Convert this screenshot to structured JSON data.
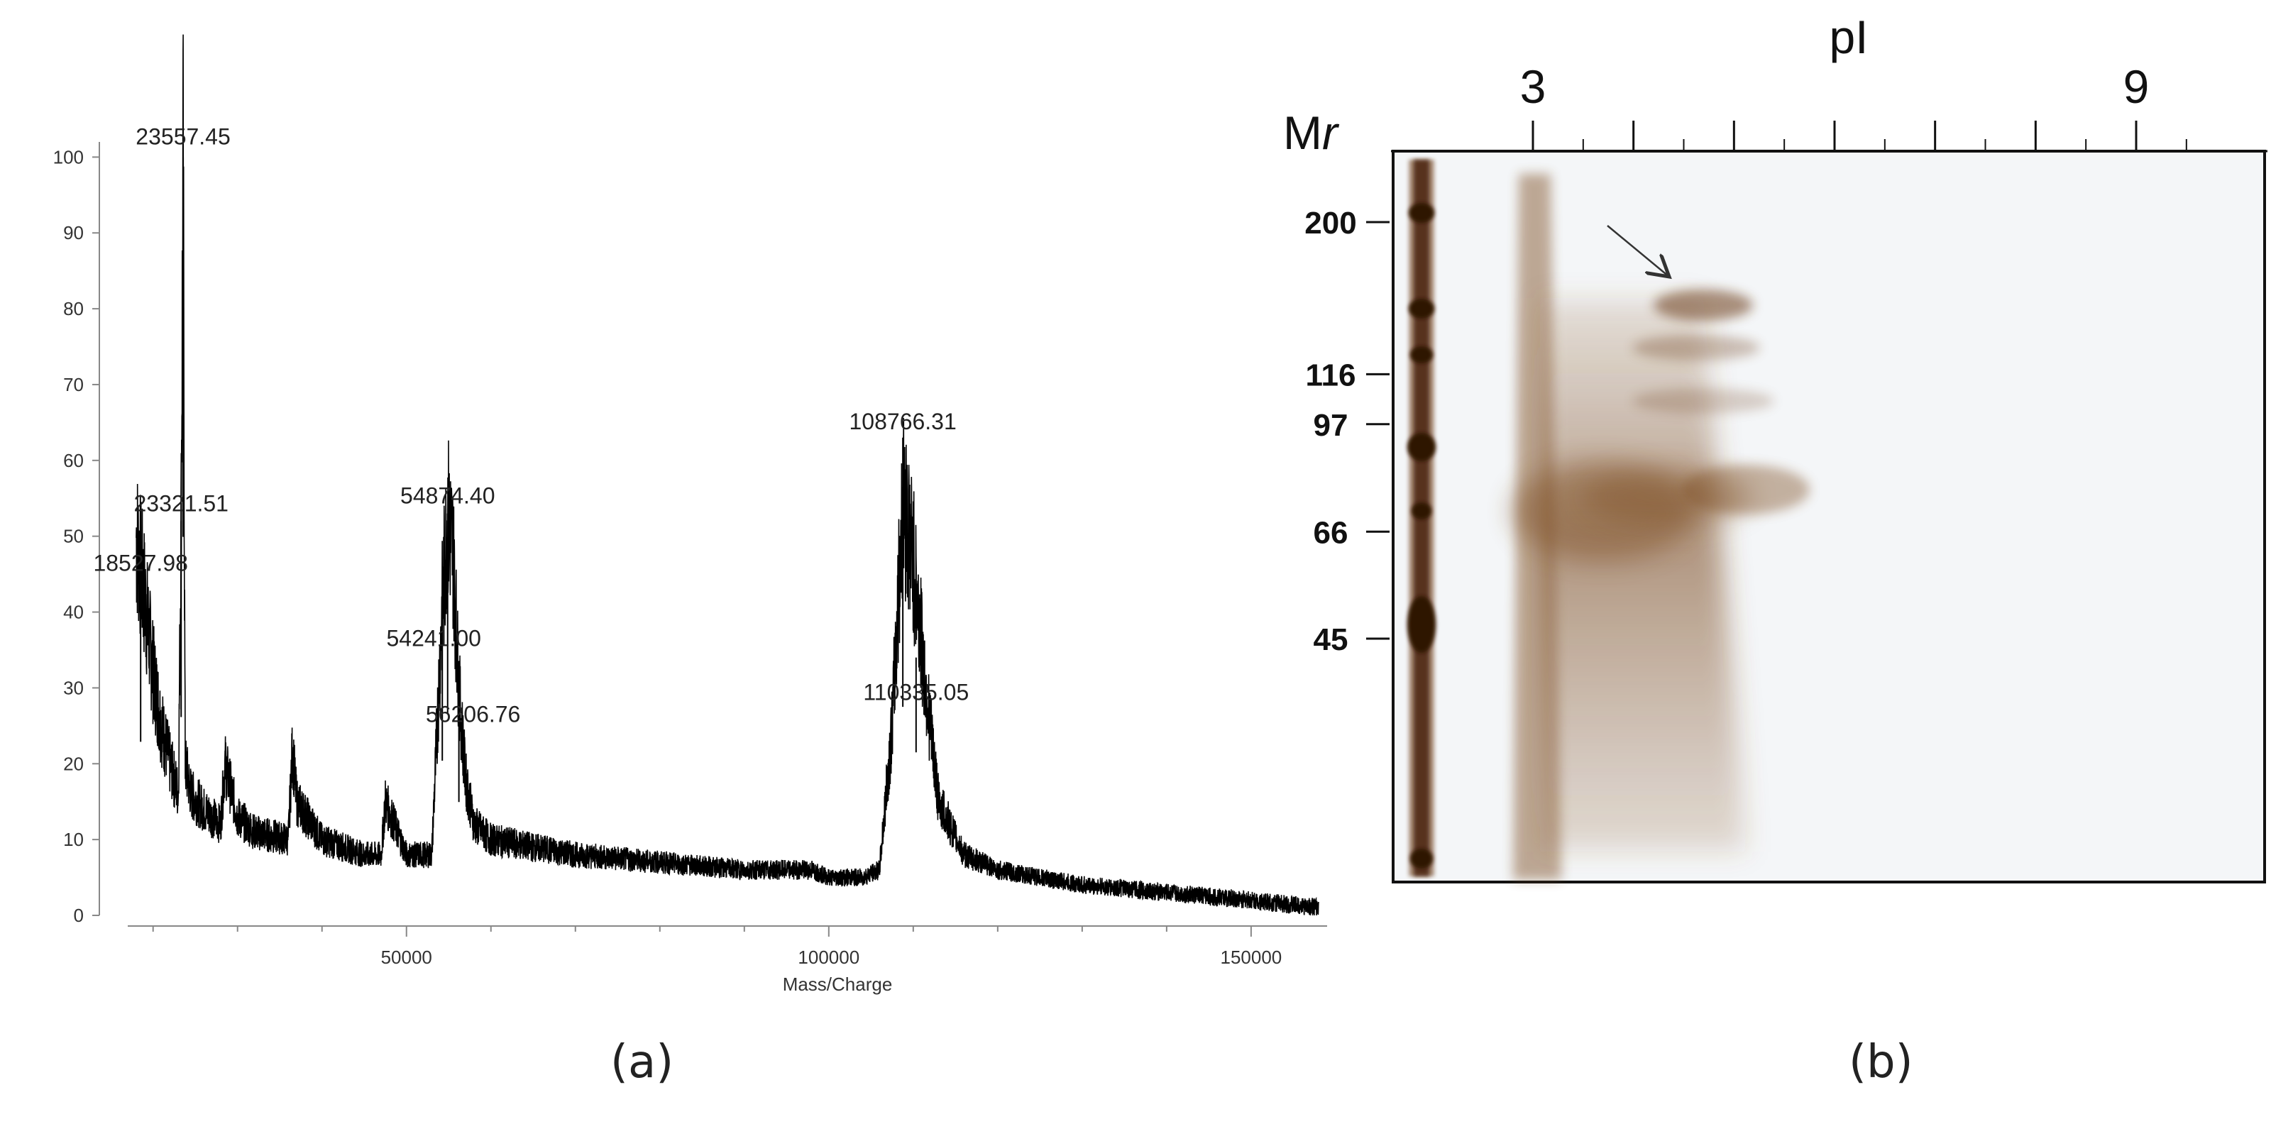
{
  "panels": {
    "a_label": "(a)",
    "b_label": "(b)"
  },
  "chart_data": [
    {
      "type": "line",
      "panel": "(a)",
      "title": "",
      "xlabel": "Mass/Charge",
      "ylabel": "",
      "xlim": [
        17000,
        159000
      ],
      "ylim": [
        0,
        102
      ],
      "x_ticks": [
        50000,
        100000,
        150000
      ],
      "x_tick_labels": [
        "50000",
        "100000",
        "150000"
      ],
      "y_ticks": [
        0,
        10,
        20,
        30,
        40,
        50,
        60,
        70,
        80,
        90,
        100
      ],
      "y_tick_labels": [
        "0",
        "10",
        "20",
        "30",
        "40",
        "50",
        "60",
        "70",
        "80",
        "90",
        "100"
      ],
      "series": [
        {
          "x": [
            18000,
            19000,
            20000,
            21000,
            22000,
            23000,
            23320,
            23557,
            23800,
            24500,
            26000,
            28000,
            28500,
            30000,
            32000,
            36000,
            36500,
            37000,
            40000,
            45000,
            47000,
            47500,
            50000,
            53000,
            54200,
            54874,
            55500,
            56200,
            57000,
            58000,
            60000,
            70000,
            80000,
            90000,
            98000,
            100000,
            104000,
            106000,
            107500,
            108766,
            110000,
            110335,
            111500,
            113000,
            116000,
            120000,
            125000,
            130000,
            140000,
            150000,
            158000
          ],
          "y": [
            50,
            42,
            32,
            25,
            20,
            16,
            52,
            100,
            20,
            16,
            14,
            12,
            20,
            13,
            11,
            10,
            22,
            15,
            10,
            8,
            8,
            15,
            8,
            8,
            40,
            53,
            48,
            30,
            18,
            12,
            10,
            8,
            7,
            6,
            6,
            5,
            5,
            6,
            25,
            55,
            47,
            43,
            30,
            15,
            8,
            6,
            5,
            4,
            3,
            2,
            1
          ]
        }
      ],
      "peak_labels": [
        {
          "text": "23557.45",
          "x": 23557.45,
          "y": 100
        },
        {
          "text": "23321.51",
          "x": 23321.51,
          "y": 52
        },
        {
          "text": "18527.98",
          "x": 18527.98,
          "y": 46
        },
        {
          "text": "54874.40",
          "x": 54874.4,
          "y": 53
        },
        {
          "text": "54241.00",
          "x": 54241.0,
          "y": 40
        },
        {
          "text": "56206.76",
          "x": 56206.76,
          "y": 30
        },
        {
          "text": "108766.31",
          "x": 108766.31,
          "y": 63
        },
        {
          "text": "110335.05",
          "x": 110335.05,
          "y": 34
        }
      ]
    }
  ],
  "gel": {
    "panel": "(b)",
    "top_axis_title": "pI",
    "ph_labels": [
      {
        "text": "3",
        "ph": 3
      },
      {
        "text": "9",
        "ph": 9
      }
    ],
    "mr_title": "Mr",
    "mr_markers": [
      {
        "label": "200",
        "mr": 200
      },
      {
        "label": "116",
        "mr": 116
      },
      {
        "label": "97",
        "mr": 97
      },
      {
        "label": "66",
        "mr": 66
      },
      {
        "label": "45",
        "mr": 45
      }
    ],
    "colors": {
      "background": "#f4f6f8",
      "stain": "#6b3a17",
      "ladder": "#4a240c"
    }
  }
}
